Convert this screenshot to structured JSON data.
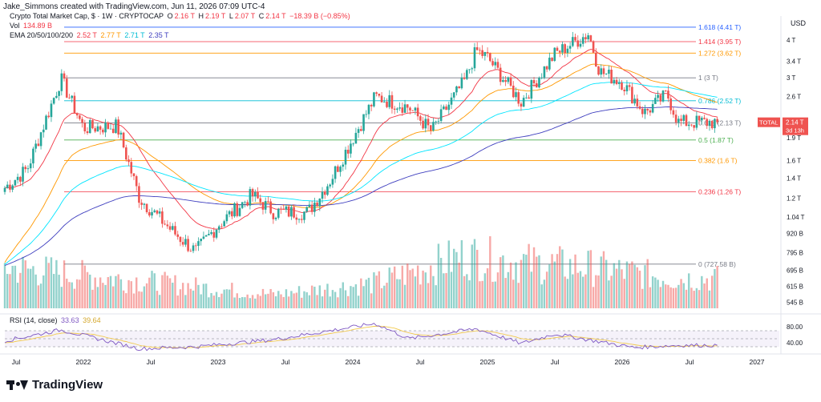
{
  "header": {
    "author_line": "Jake_Simmons created with TradingView.com, Jun 11, 2026 07:09 UTC-4"
  },
  "legend": {
    "symbol": "Crypto Total Market Cap, $ · 1W · CRYPTOCAP",
    "o_label": "O",
    "o_val": "2.16 T",
    "h_label": "H",
    "h_val": "2.19 T",
    "l_label": "L",
    "l_val": "2.07 T",
    "c_label": "C",
    "c_val": "2.14 T",
    "change": "−18.39 B (−0.85%)",
    "vol_label": "Vol",
    "vol_val": "134.89 B",
    "ema_label": "EMA 20/50/100/200",
    "ema20": "2.52 T",
    "ema50": "2.77 T",
    "ema100": "2.71 T",
    "ema200": "2.35 T",
    "rsi_label": "RSI (14, close)",
    "rsi_val": "33.63",
    "rsi_ma": "39.64"
  },
  "price_axis": {
    "unit": "USD",
    "ticks": [
      "4 T",
      "3.4 T",
      "3 T",
      "2.6 T",
      "1.9 T",
      "1.6 T",
      "1.4 T",
      "1.2 T",
      "1.04 T",
      "920 B",
      "795 B",
      "695 B",
      "615 B",
      "545 B"
    ],
    "current_tag": "TOTAL",
    "current_value": "2.14 T",
    "countdown": "3d 13h"
  },
  "rsi_axis": {
    "ticks": [
      "80.00",
      "40.00"
    ]
  },
  "time_axis": {
    "ticks": [
      "Jul",
      "2022",
      "Jul",
      "2023",
      "Jul",
      "2024",
      "Jul",
      "2025",
      "Jul",
      "2026",
      "Jul",
      "2027"
    ]
  },
  "fib_levels": [
    {
      "label": "1.618 (4.41 T)",
      "color": "#2962ff"
    },
    {
      "label": "1.414 (3.95 T)",
      "color": "#f23645"
    },
    {
      "label": "1.272 (3.62 T)",
      "color": "#ff9800"
    },
    {
      "label": "1 (3 T)",
      "color": "#787b86"
    },
    {
      "label": "0.786 (2.52 T)",
      "color": "#00bcd4"
    },
    {
      "label": "0.618 (2.13 T)",
      "color": "#787b86"
    },
    {
      "label": "0.5 (1.87 T)",
      "color": "#4caf50"
    },
    {
      "label": "0.382 (1.6 T)",
      "color": "#ff9800"
    },
    {
      "label": "0.236 (1.26 T)",
      "color": "#f23645"
    },
    {
      "label": "0 (727.58 B)",
      "color": "#787b86"
    }
  ],
  "colors": {
    "up": "#26a69a",
    "down": "#ef5350",
    "ema20": "#f23645",
    "ema50": "#ff9800",
    "ema100": "#00e5ff",
    "ema200": "#3f3fbf",
    "rsi": "#7e57c2",
    "rsi_ma": "#f2c94c"
  },
  "brand": {
    "name": "TradingView"
  },
  "chart_data": {
    "type": "candlestick",
    "title": "Crypto Total Market Cap, $ · 1W · CRYPTOCAP",
    "ylabel": "USD",
    "yscale": "log",
    "ylim": [
      520,
      4800
    ],
    "x_range": [
      "2021-06",
      "2027-03"
    ],
    "price_anchors": {
      "dates": [
        "2021-06",
        "2021-08",
        "2021-11",
        "2022-01",
        "2022-04",
        "2022-06",
        "2022-09",
        "2022-11",
        "2023-01",
        "2023-04",
        "2023-06",
        "2023-09",
        "2023-11",
        "2024-03",
        "2024-06",
        "2024-08",
        "2024-11",
        "2024-12",
        "2025-01",
        "2025-04",
        "2025-07",
        "2025-10",
        "2025-11",
        "2026-01",
        "2026-03",
        "2026-05",
        "2026-06"
      ],
      "values": [
        1300,
        1500,
        2980,
        2050,
        2080,
        1200,
        930,
        800,
        980,
        1230,
        1080,
        1080,
        1380,
        2600,
        2400,
        2000,
        2950,
        3700,
        3500,
        2500,
        3600,
        4200,
        3150,
        2900,
        2300,
        2650,
        2140
      ]
    },
    "volume_anchors": {
      "dates": [
        "2021-06",
        "2022-06",
        "2023-06",
        "2024-03",
        "2024-11",
        "2025-04",
        "2025-10",
        "2026-06"
      ],
      "values": [
        180,
        120,
        60,
        110,
        230,
        200,
        180,
        130
      ]
    },
    "rsi_anchors": {
      "dates": [
        "2021-06",
        "2021-11",
        "2022-06",
        "2022-11",
        "2023-06",
        "2024-03",
        "2024-06",
        "2024-12",
        "2025-04",
        "2025-07",
        "2026-02",
        "2026-06"
      ],
      "values": [
        45,
        72,
        25,
        30,
        48,
        88,
        50,
        75,
        38,
        62,
        28,
        33.63
      ]
    },
    "series_last": {
      "ema20": 2520,
      "ema50": 2770,
      "ema100": 2710,
      "ema200": 2350,
      "rsi": 33.63,
      "rsi_ma": 39.64
    }
  }
}
